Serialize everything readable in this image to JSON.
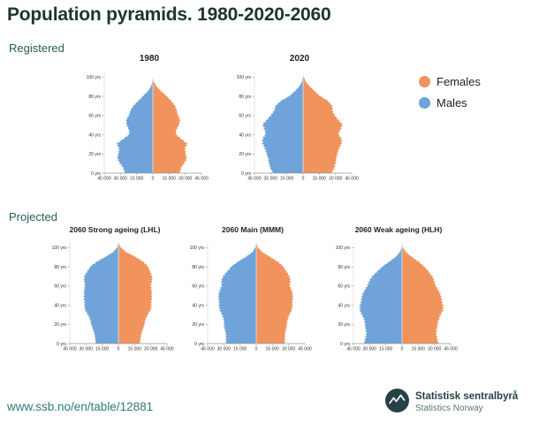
{
  "page": {
    "title": "Population pyramids. 1980-2020-2060",
    "section_registered": "Registered",
    "section_projected": "Projected",
    "source_link": "www.ssb.no/en/table/12881"
  },
  "legend": {
    "females": {
      "label": "Females",
      "color": "#F0935C"
    },
    "males": {
      "label": "Males",
      "color": "#6FA3D9"
    }
  },
  "branding": {
    "org_name": "Statistisk sentralbyrå",
    "org_name_en": "Statistics Norway",
    "logo_color": "#274247"
  },
  "chart_data": [
    {
      "type": "bar",
      "subtype": "population-pyramid",
      "group": "Registered",
      "title": "1980",
      "age_step": 5,
      "ages": [
        0,
        5,
        10,
        15,
        20,
        25,
        30,
        35,
        40,
        45,
        50,
        55,
        60,
        65,
        70,
        75,
        80,
        85,
        90,
        95,
        100
      ],
      "xmax": 45000,
      "x_tick_labels": [
        "45 000",
        "30 000",
        "15 000",
        "0",
        "15 000",
        "30 000",
        "45 000"
      ],
      "y_tick_labels": [
        "0 yrs",
        "20 yrs",
        "40 yrs",
        "60 yrs",
        "80 yrs",
        "100 yrs"
      ],
      "series": [
        {
          "name": "Males",
          "side": "left",
          "values": [
            25500,
            27500,
            31000,
            32500,
            31500,
            31500,
            33500,
            27000,
            22000,
            22500,
            24000,
            24500,
            22500,
            20500,
            17500,
            13500,
            9000,
            4500,
            1700,
            400,
            50
          ]
        },
        {
          "name": "Females",
          "side": "right",
          "values": [
            24500,
            26000,
            29500,
            31000,
            30000,
            30000,
            32000,
            26000,
            21500,
            22000,
            24000,
            25000,
            23500,
            22000,
            20000,
            17000,
            12500,
            7500,
            3300,
            900,
            150
          ]
        }
      ]
    },
    {
      "type": "bar",
      "subtype": "population-pyramid",
      "group": "Registered",
      "title": "2020",
      "age_step": 5,
      "ages": [
        0,
        5,
        10,
        15,
        20,
        25,
        30,
        35,
        40,
        45,
        50,
        55,
        60,
        65,
        70,
        75,
        80,
        85,
        90,
        95,
        100
      ],
      "xmax": 45000,
      "x_tick_labels": [
        "45 000",
        "30 000",
        "15 000",
        "0",
        "15 000",
        "30 000",
        "45 000"
      ],
      "y_tick_labels": [
        "0 yrs",
        "20 yrs",
        "40 yrs",
        "60 yrs",
        "80 yrs",
        "100 yrs"
      ],
      "series": [
        {
          "name": "Males",
          "side": "left",
          "values": [
            27500,
            30500,
            32000,
            32000,
            33500,
            35500,
            37500,
            37000,
            35000,
            36000,
            37000,
            33500,
            30000,
            26500,
            25000,
            20500,
            12500,
            7500,
            3500,
            1100,
            150
          ]
        },
        {
          "name": "Females",
          "side": "right",
          "values": [
            26000,
            29000,
            30500,
            30500,
            31500,
            33500,
            35500,
            35000,
            33000,
            35000,
            36000,
            32500,
            29500,
            27000,
            26500,
            23000,
            15500,
            10500,
            6000,
            2400,
            500
          ]
        }
      ]
    },
    {
      "type": "bar",
      "subtype": "population-pyramid",
      "group": "Projected",
      "title": "2060 Strong ageing (LHL)",
      "age_step": 5,
      "ages": [
        0,
        5,
        10,
        15,
        20,
        25,
        30,
        35,
        40,
        45,
        50,
        55,
        60,
        65,
        70,
        75,
        80,
        85,
        90,
        95,
        100
      ],
      "xmax": 45000,
      "x_tick_labels": [
        "45 000",
        "30 000",
        "15 000",
        "0",
        "15 000",
        "30 000",
        "45 000"
      ],
      "y_tick_labels": [
        "0 yrs",
        "20 yrs",
        "40 yrs",
        "60 yrs",
        "80 yrs",
        "100 yrs"
      ],
      "series": [
        {
          "name": "Males",
          "side": "left",
          "values": [
            20500,
            21500,
            22500,
            23500,
            25000,
            26500,
            28500,
            30500,
            31500,
            32000,
            31500,
            31500,
            31500,
            31500,
            31000,
            29000,
            26000,
            19500,
            12000,
            4800,
            1000
          ]
        },
        {
          "name": "Females",
          "side": "right",
          "values": [
            19500,
            20500,
            21500,
            22500,
            24000,
            25500,
            27500,
            29500,
            30500,
            31000,
            30500,
            30500,
            30500,
            31000,
            30500,
            29500,
            27500,
            22500,
            15500,
            7200,
            1900
          ]
        }
      ]
    },
    {
      "type": "bar",
      "subtype": "population-pyramid",
      "group": "Projected",
      "title": "2060 Main (MMM)",
      "age_step": 5,
      "ages": [
        0,
        5,
        10,
        15,
        20,
        25,
        30,
        35,
        40,
        45,
        50,
        55,
        60,
        65,
        70,
        75,
        80,
        85,
        90,
        95,
        100
      ],
      "xmax": 45000,
      "x_tick_labels": [
        "45 000",
        "30 000",
        "15 000",
        "0",
        "15 000",
        "30 000",
        "45 000"
      ],
      "y_tick_labels": [
        "0 yrs",
        "20 yrs",
        "40 yrs",
        "60 yrs",
        "80 yrs",
        "100 yrs"
      ],
      "series": [
        {
          "name": "Males",
          "side": "left",
          "values": [
            27500,
            28000,
            28500,
            29000,
            29500,
            30500,
            32000,
            33500,
            34500,
            35000,
            34500,
            33500,
            32500,
            32000,
            30000,
            27000,
            23000,
            16500,
            9500,
            3500,
            700
          ]
        },
        {
          "name": "Females",
          "side": "right",
          "values": [
            26000,
            26500,
            27000,
            27500,
            28000,
            29500,
            31000,
            32500,
            33500,
            34000,
            33500,
            32500,
            31500,
            31500,
            30000,
            28000,
            25000,
            19500,
            12500,
            5500,
            1300
          ]
        }
      ]
    },
    {
      "type": "bar",
      "subtype": "population-pyramid",
      "group": "Projected",
      "title": "2060 Weak ageing (HLH)",
      "age_step": 5,
      "ages": [
        0,
        5,
        10,
        15,
        20,
        25,
        30,
        35,
        40,
        45,
        50,
        55,
        60,
        65,
        70,
        75,
        80,
        85,
        90,
        95,
        100
      ],
      "xmax": 45000,
      "x_tick_labels": [
        "45 000",
        "30 000",
        "15 000",
        "0",
        "15 000",
        "30 000",
        "45 000"
      ],
      "y_tick_labels": [
        "0 yrs",
        "20 yrs",
        "40 yrs",
        "60 yrs",
        "80 yrs",
        "100 yrs"
      ],
      "series": [
        {
          "name": "Males",
          "side": "left",
          "values": [
            34500,
            34000,
            33500,
            33500,
            34000,
            35500,
            37500,
            38500,
            39000,
            38000,
            36500,
            34500,
            32500,
            30000,
            27000,
            23000,
            18000,
            11500,
            5800,
            2000,
            300
          ]
        },
        {
          "name": "Females",
          "side": "right",
          "values": [
            33000,
            32500,
            32000,
            32000,
            32500,
            34500,
            36000,
            37500,
            38000,
            37000,
            35500,
            33500,
            31500,
            29500,
            27500,
            24500,
            20500,
            15000,
            8800,
            3600,
            700
          ]
        }
      ]
    }
  ]
}
